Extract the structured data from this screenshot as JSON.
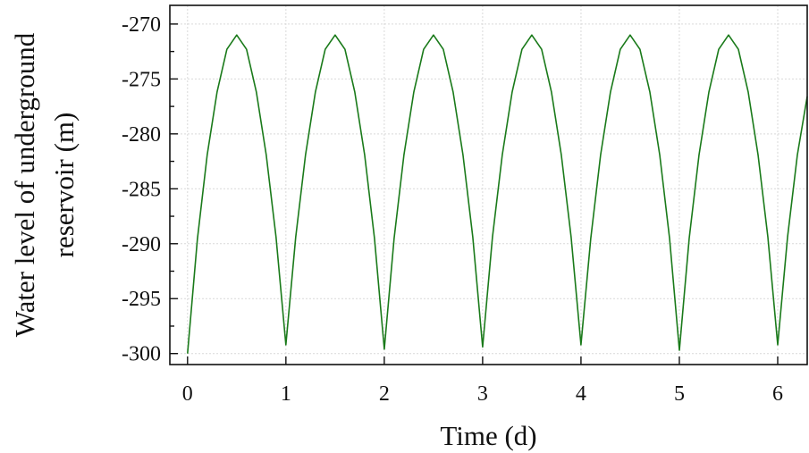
{
  "chart_data": {
    "type": "line",
    "title": "",
    "xlabel": "Time (d)",
    "ylabel_lines": [
      "Water level of underground",
      "reservoir (m)"
    ],
    "xlim": [
      -0.18,
      6.3
    ],
    "ylim": [
      -301,
      -268.3
    ],
    "xticks": [
      0,
      1,
      2,
      3,
      4,
      5,
      6
    ],
    "xtick_labels": [
      "0",
      "1",
      "2",
      "3",
      "4",
      "5",
      "6"
    ],
    "yticks": [
      -300,
      -295,
      -290,
      -285,
      -280,
      -275,
      -270
    ],
    "ytick_labels": [
      "-300",
      "-295",
      "-290",
      "-285",
      "-280",
      "-275",
      "-270"
    ],
    "grid": true,
    "legend": "none",
    "series": [
      {
        "color": "#1a7a1a",
        "x": [
          0,
          0.1,
          0.2,
          0.3,
          0.4,
          0.5,
          0.6,
          0.7,
          0.8,
          0.9,
          1.0,
          1.1,
          1.2,
          1.3,
          1.4,
          1.5,
          1.6,
          1.7,
          1.8,
          1.9,
          2.0,
          2.1,
          2.2,
          2.3,
          2.4,
          2.5,
          2.6,
          2.7,
          2.8,
          2.9,
          3.0,
          3.1,
          3.2,
          3.3,
          3.4,
          3.5,
          3.6,
          3.7,
          3.8,
          3.9,
          4.0,
          4.1,
          4.2,
          4.3,
          4.4,
          4.5,
          4.6,
          4.7,
          4.8,
          4.9,
          5.0,
          5.1,
          5.2,
          5.3,
          5.4,
          5.5,
          5.6,
          5.7,
          5.8,
          5.9,
          6.0,
          6.1,
          6.2,
          6.3
        ],
        "y": [
          -300,
          -289.6,
          -281.9,
          -276.2,
          -272.3,
          -271.0,
          -272.3,
          -276.2,
          -281.9,
          -289.4,
          -299.2,
          -289.4,
          -281.9,
          -276.2,
          -272.3,
          -271.0,
          -272.3,
          -276.2,
          -281.9,
          -289.5,
          -299.6,
          -289.5,
          -281.9,
          -276.2,
          -272.3,
          -271.0,
          -272.3,
          -276.2,
          -281.9,
          -289.4,
          -299.4,
          -289.4,
          -281.9,
          -276.2,
          -272.3,
          -271.0,
          -272.3,
          -276.2,
          -281.9,
          -289.4,
          -299.2,
          -289.5,
          -281.9,
          -276.2,
          -272.3,
          -271.0,
          -272.3,
          -276.2,
          -281.9,
          -289.5,
          -299.7,
          -289.5,
          -281.9,
          -276.2,
          -272.3,
          -271.0,
          -272.3,
          -276.2,
          -281.9,
          -289.4,
          -299.2,
          -289.4,
          -281.9,
          -276.6
        ]
      }
    ]
  }
}
